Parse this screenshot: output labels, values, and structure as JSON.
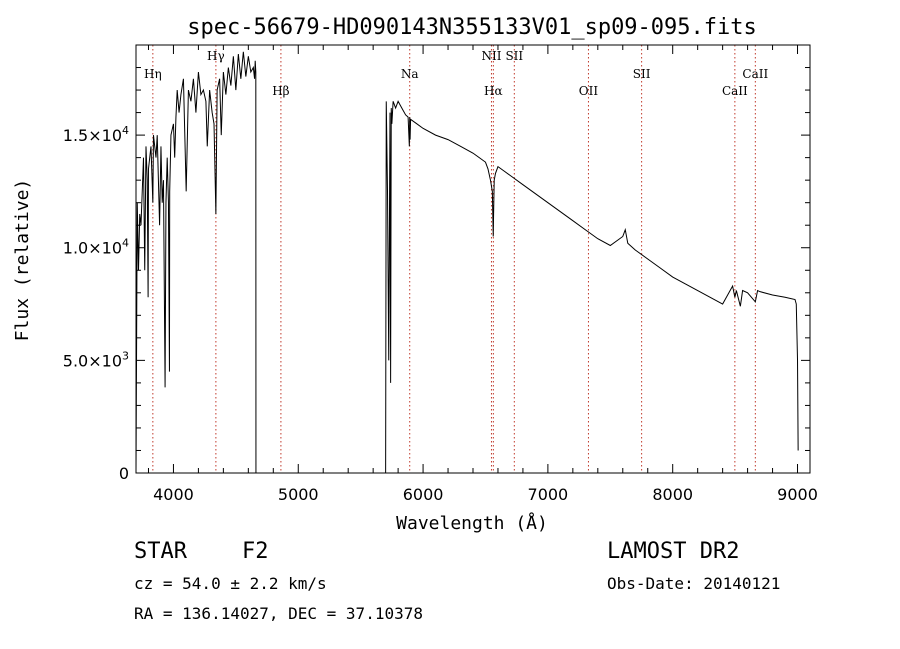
{
  "chart_data": {
    "type": "line",
    "title": "spec-56679-HD090143N355133V01_sp09-095.fits",
    "xlabel": "Wavelength (Å)",
    "ylabel": "Flux (relative)",
    "xlim": [
      3700,
      9100
    ],
    "ylim": [
      0,
      19000
    ],
    "x_ticks": [
      4000,
      5000,
      6000,
      7000,
      8000,
      9000
    ],
    "y_ticks": [
      {
        "value": 0,
        "mantissa": "0",
        "exponent": ""
      },
      {
        "value": 5000,
        "mantissa": "5.0×10",
        "exponent": "3"
      },
      {
        "value": 10000,
        "mantissa": "1.0×10",
        "exponent": "4"
      },
      {
        "value": 15000,
        "mantissa": "1.5×10",
        "exponent": "4"
      }
    ],
    "lines": [
      {
        "label": "Hη",
        "wavelength": 3835,
        "label_level": 0
      },
      {
        "label": "Hγ",
        "wavelength": 4340,
        "label_level": 0
      },
      {
        "label": "Hβ",
        "wavelength": 4861,
        "label_level": 1
      },
      {
        "label": "Na",
        "wavelength": 5893,
        "label_level": 0
      },
      {
        "label": "NII",
        "wavelength": 6548,
        "label_level": 0
      },
      {
        "label": "Hα",
        "wavelength": 6563,
        "label_level": 1
      },
      {
        "label": "SII",
        "wavelength": 6731,
        "label_level": 0
      },
      {
        "label": "OII",
        "wavelength": 7325,
        "label_level": 1
      },
      {
        "label": "SII",
        "wavelength": 7751,
        "label_level": 0
      },
      {
        "label": "CaII",
        "wavelength": 8498,
        "label_level": 1
      },
      {
        "label": "CaII",
        "wavelength": 8662,
        "label_level": 0
      }
    ],
    "series": [
      {
        "x": [
          3700,
          3710,
          3720,
          3730,
          3740,
          3750,
          3760,
          3770,
          3780,
          3790,
          3797,
          3800,
          3810,
          3820,
          3835,
          3840,
          3850,
          3860,
          3870,
          3889,
          3900,
          3910,
          3920,
          3933,
          3940,
          3950,
          3960,
          3968,
          3970,
          3980,
          4000,
          4010,
          4020,
          4030,
          4045,
          4060,
          4080,
          4102,
          4120,
          4140,
          4160,
          4180,
          4200,
          4220,
          4240,
          4260,
          4271,
          4290,
          4310,
          4325,
          4340,
          4350,
          4370,
          4383,
          4400,
          4420,
          4440,
          4460,
          4480,
          4500,
          4520,
          4540,
          4560,
          4580,
          4600,
          4620,
          4640,
          4650,
          4655,
          4660,
          4661,
          5700,
          5705,
          5715,
          5725,
          5735,
          5740,
          5745,
          5750,
          5760,
          5780,
          5800,
          5820,
          5840,
          5860,
          5880,
          5890,
          5893,
          5896,
          5900,
          5950,
          6000,
          6100,
          6200,
          6300,
          6400,
          6450,
          6500,
          6520,
          6540,
          6555,
          6562,
          6565,
          6570,
          6580,
          6600,
          6650,
          6700,
          6800,
          6900,
          7000,
          7100,
          7200,
          7300,
          7400,
          7500,
          7600,
          7620,
          7640,
          7660,
          7680,
          7700,
          7800,
          7900,
          8000,
          8100,
          8200,
          8300,
          8400,
          8480,
          8498,
          8510,
          8542,
          8560,
          8600,
          8662,
          8680,
          8700,
          8800,
          8900,
          8980,
          8990,
          9000,
          9005
        ],
        "y": [
          0,
          12000,
          9000,
          11500,
          11000,
          12500,
          14000,
          9000,
          14500,
          13000,
          7800,
          13500,
          14000,
          14500,
          12000,
          15000,
          14500,
          14000,
          15000,
          11000,
          14500,
          12000,
          13000,
          3800,
          12000,
          14000,
          12000,
          4500,
          12500,
          15000,
          15500,
          14000,
          15800,
          17000,
          16000,
          16800,
          17500,
          12500,
          17000,
          16500,
          17500,
          16000,
          17800,
          16800,
          17000,
          16500,
          14500,
          17000,
          16000,
          15500,
          11500,
          17000,
          17500,
          15000,
          17800,
          16800,
          18000,
          17200,
          18500,
          17000,
          18600,
          17500,
          18700,
          17600,
          18500,
          17800,
          18000,
          17500,
          18300,
          17800,
          0,
          0,
          16500,
          12500,
          5000,
          16000,
          4000,
          16200,
          15500,
          16500,
          16200,
          16500,
          16300,
          16100,
          15900,
          15800,
          14500,
          15800,
          14800,
          15700,
          15500,
          15300,
          15000,
          14800,
          14500,
          14200,
          14000,
          13800,
          13500,
          13000,
          12500,
          10500,
          11500,
          13000,
          13300,
          13600,
          13400,
          13200,
          12800,
          12400,
          12000,
          11600,
          11200,
          10800,
          10400,
          10100,
          10500,
          10800,
          10200,
          10100,
          10000,
          9900,
          9500,
          9100,
          8700,
          8400,
          8100,
          7800,
          7500,
          8300,
          7800,
          8100,
          7400,
          8100,
          8000,
          7600,
          8100,
          8050,
          7900,
          7800,
          7700,
          7500,
          5000,
          1000
        ]
      }
    ]
  },
  "info": {
    "object_class": "STAR",
    "subclass": "F2",
    "survey": "LAMOST DR2",
    "redshift": "cz = 54.0 ± 2.2 km/s",
    "obs_date": "Obs-Date: 20140121",
    "coords": "RA = 136.14027, DEC =  37.10378"
  }
}
